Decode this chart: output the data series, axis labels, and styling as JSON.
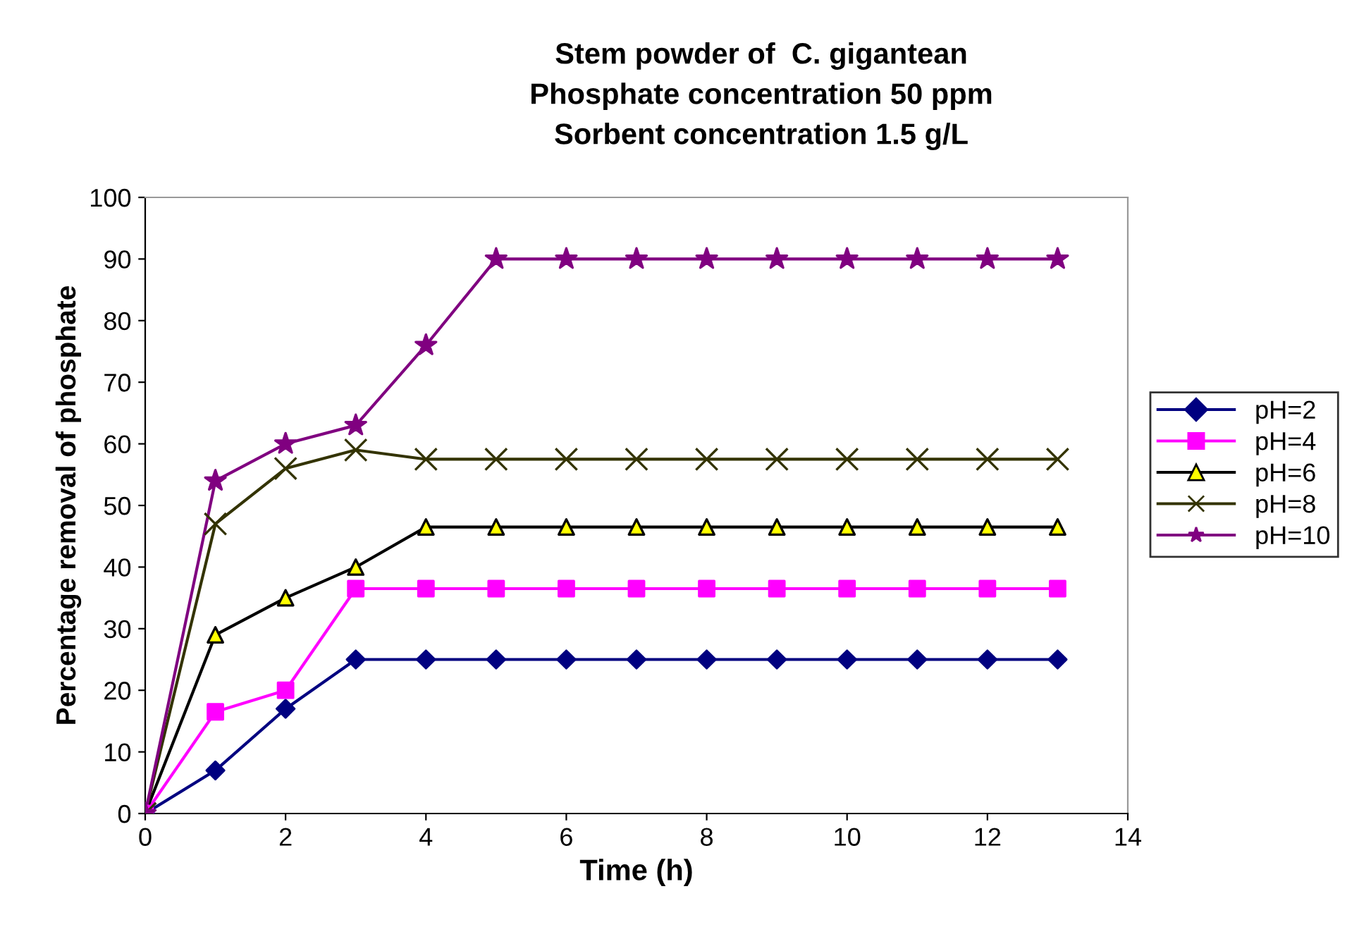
{
  "chart_data": {
    "type": "line",
    "title": "Stem powder of  C. gigantean\nPhosphate concentration 50 ppm\nSorbent concentration 1.5 g/L",
    "xlabel": "Time (h)",
    "ylabel": "Percentage removal of phosphate",
    "x": [
      0,
      1,
      2,
      3,
      4,
      5,
      6,
      7,
      8,
      9,
      10,
      11,
      12,
      13
    ],
    "xlim": [
      0,
      14
    ],
    "xticks": [
      0,
      2,
      4,
      6,
      8,
      10,
      12,
      14
    ],
    "ylim": [
      0,
      100
    ],
    "yticks": [
      0,
      10,
      20,
      30,
      40,
      50,
      60,
      70,
      80,
      90,
      100
    ],
    "grid": false,
    "legend": "right",
    "line_style": "solid",
    "series": [
      {
        "name": "pH=2",
        "color": "#000080",
        "marker": "diamond",
        "values": [
          0,
          7,
          17,
          25,
          25,
          25,
          25,
          25,
          25,
          25,
          25,
          25,
          25,
          25
        ]
      },
      {
        "name": "pH=4",
        "color": "#ff00ff",
        "marker": "square",
        "values": [
          0,
          16.5,
          20,
          36.5,
          36.5,
          36.5,
          36.5,
          36.5,
          36.5,
          36.5,
          36.5,
          36.5,
          36.5,
          36.5
        ]
      },
      {
        "name": "pH=6",
        "color": "#000000",
        "colors": [
          "#ffff00",
          "#ffff00",
          "#ffff00",
          "#ffff00",
          "#ffff00",
          "#ffff00",
          "#ffff00",
          "#ffff00",
          "#ffff00",
          "#ffff00",
          "#ffff00",
          "#ffff00",
          "#ffff00",
          "#ffff00"
        ],
        "marker": "triangle",
        "values": [
          0,
          29,
          35,
          40,
          46.5,
          46.5,
          46.5,
          46.5,
          46.5,
          46.5,
          46.5,
          46.5,
          46.5,
          46.5
        ]
      },
      {
        "name": "pH=8",
        "color": "#333300",
        "marker": "cross",
        "values": [
          0,
          47,
          56,
          59,
          57.5,
          57.5,
          57.5,
          57.5,
          57.5,
          57.5,
          57.5,
          57.5,
          57.5,
          57.5
        ]
      },
      {
        "name": "pH=10",
        "color": "#800080",
        "marker": "star",
        "values": [
          0,
          54,
          60,
          63,
          76,
          90,
          90,
          90,
          90,
          90,
          90,
          90,
          90,
          90
        ]
      }
    ]
  }
}
